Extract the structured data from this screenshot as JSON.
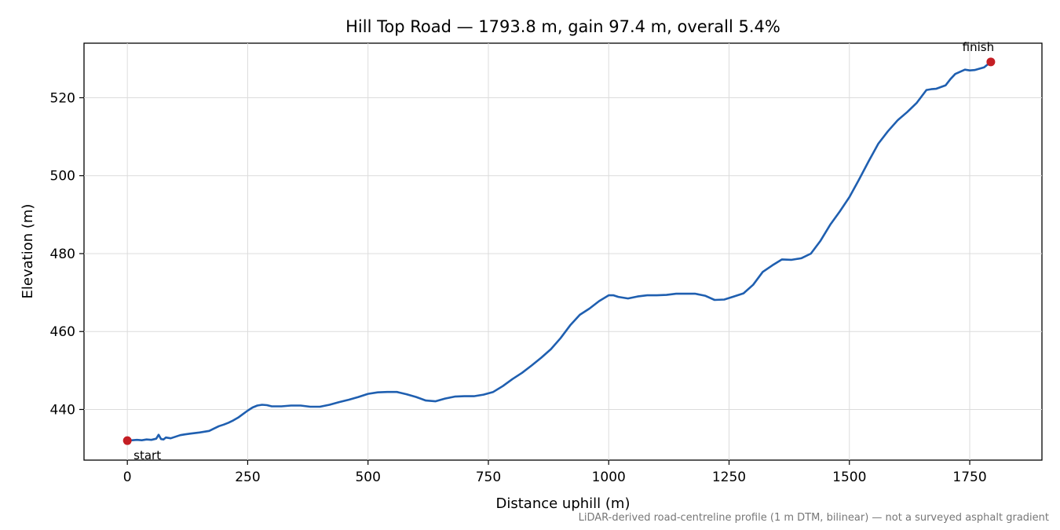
{
  "chart_data": {
    "type": "line",
    "title": "Hill Top Road — 1793.8 m, gain 97.4 m, overall 5.4%",
    "xlabel": "Distance uphill (m)",
    "ylabel": "Elevation (m)",
    "xlim": [
      -90,
      1900
    ],
    "ylim": [
      427,
      534
    ],
    "xticks": [
      0,
      250,
      500,
      750,
      1000,
      1250,
      1500,
      1750
    ],
    "yticks": [
      440,
      460,
      480,
      500,
      520
    ],
    "grid": true,
    "line_color": "#1f5fb0",
    "marker_color": "#c41e24",
    "series": [
      {
        "x": [
          0,
          10,
          20,
          30,
          40,
          50,
          60,
          65,
          70,
          75,
          80,
          90,
          100,
          110,
          120,
          130,
          150,
          170,
          180,
          190,
          200,
          210,
          220,
          230,
          240,
          250,
          260,
          270,
          280,
          290,
          300,
          320,
          340,
          360,
          380,
          400,
          420,
          440,
          460,
          480,
          500,
          520,
          540,
          560,
          580,
          600,
          620,
          640,
          660,
          680,
          700,
          720,
          740,
          760,
          780,
          800,
          820,
          840,
          860,
          880,
          900,
          920,
          940,
          960,
          980,
          1000,
          1010,
          1020,
          1040,
          1060,
          1080,
          1100,
          1120,
          1140,
          1160,
          1180,
          1200,
          1220,
          1240,
          1260,
          1280,
          1300,
          1320,
          1340,
          1360,
          1380,
          1400,
          1420,
          1440,
          1460,
          1480,
          1500,
          1520,
          1540,
          1560,
          1580,
          1600,
          1620,
          1640,
          1660,
          1670,
          1680,
          1700,
          1710,
          1720,
          1740,
          1750,
          1760,
          1780,
          1793.8
        ],
        "y": [
          432.0,
          432.1,
          432.2,
          432.1,
          432.3,
          432.2,
          432.5,
          433.5,
          432.4,
          432.3,
          432.8,
          432.6,
          433.0,
          433.4,
          433.6,
          433.8,
          434.1,
          434.5,
          435.1,
          435.7,
          436.1,
          436.6,
          437.2,
          437.9,
          438.8,
          439.7,
          440.5,
          441.0,
          441.2,
          441.1,
          440.8,
          440.8,
          441.0,
          441.0,
          440.7,
          440.7,
          441.2,
          441.9,
          442.5,
          443.2,
          444.0,
          444.4,
          444.5,
          444.5,
          443.9,
          443.2,
          442.3,
          442.1,
          442.8,
          443.3,
          443.4,
          443.4,
          443.8,
          444.5,
          446.0,
          447.8,
          449.4,
          451.3,
          453.3,
          455.5,
          458.3,
          461.6,
          464.3,
          465.9,
          467.8,
          469.3,
          469.3,
          468.9,
          468.5,
          469.0,
          469.3,
          469.3,
          469.4,
          469.7,
          469.7,
          469.7,
          469.2,
          468.1,
          468.2,
          469.0,
          469.8,
          472.0,
          475.3,
          477.0,
          478.5,
          478.4,
          478.8,
          480.0,
          483.3,
          487.4,
          490.8,
          494.5,
          499.0,
          503.7,
          508.2,
          511.4,
          514.2,
          516.3,
          518.7,
          522.0,
          522.2,
          522.3,
          523.2,
          524.8,
          526.1,
          527.2,
          527.0,
          527.1,
          527.8,
          529.2
        ]
      }
    ],
    "annotations": [
      {
        "label": "start",
        "x": 0,
        "y": 432.0
      },
      {
        "label": "finish",
        "x": 1793.8,
        "y": 529.2
      }
    ],
    "footnote": "LiDAR-derived road-centreline profile (1 m DTM, bilinear) — not a surveyed asphalt gradient"
  }
}
